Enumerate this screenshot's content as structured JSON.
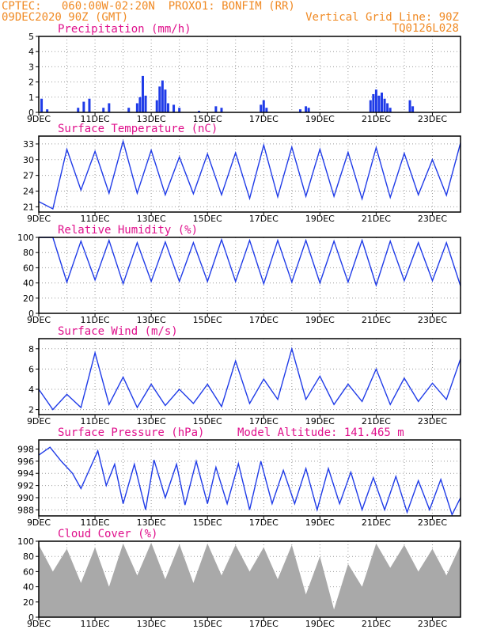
{
  "header": {
    "line1_left": "CPTEC:   060:00W-02:20N  PROXO1: BONFIM (RR)",
    "line2_left": "09DEC2020 90Z (GMT)",
    "line2_right": "Vertical Grid Line: 90Z",
    "line3_right": "TQ0126L028"
  },
  "colors": {
    "header": "#f08a24",
    "panel_title": "#e0108c",
    "series": "#1f3be8",
    "cloud": "#a9a9a9",
    "grid": "#9a9a9a"
  },
  "chart_data": [
    {
      "type": "bar",
      "title": "Precipitation (mm/h)",
      "x_ticks": [
        "9DEC",
        "11DEC",
        "13DEC",
        "15DEC",
        "17DEC",
        "19DEC",
        "21DEC",
        "23DEC"
      ],
      "x_range_days": [
        9,
        24
      ],
      "ylim": [
        0,
        5
      ],
      "y_ticks": [
        0,
        1,
        2,
        3,
        4,
        5
      ],
      "grid": true,
      "x": [
        9.1,
        9.3,
        10.4,
        10.6,
        10.8,
        11.3,
        11.5,
        12.2,
        12.5,
        12.6,
        12.7,
        12.8,
        13.2,
        13.3,
        13.4,
        13.5,
        13.6,
        13.8,
        14.0,
        14.7,
        15.3,
        15.5,
        16.9,
        17.0,
        17.1,
        18.3,
        18.5,
        18.6,
        20.8,
        20.9,
        21.0,
        21.1,
        21.2,
        21.3,
        21.4,
        21.5,
        22.2,
        22.3
      ],
      "values": [
        0.9,
        0.2,
        0.3,
        0.7,
        0.9,
        0.3,
        0.6,
        0.3,
        0.6,
        1.0,
        2.4,
        1.1,
        0.8,
        1.7,
        2.1,
        1.5,
        0.6,
        0.5,
        0.3,
        0.1,
        0.4,
        0.3,
        0.5,
        0.8,
        0.3,
        0.2,
        0.4,
        0.3,
        0.8,
        1.2,
        1.5,
        1.1,
        1.3,
        0.9,
        0.6,
        0.3,
        0.8,
        0.4
      ]
    },
    {
      "type": "line",
      "title": "Surface Temperature (nC)",
      "x_ticks": [
        "9DEC",
        "11DEC",
        "13DEC",
        "15DEC",
        "17DEC",
        "19DEC",
        "21DEC",
        "23DEC"
      ],
      "x_range_days": [
        9,
        24
      ],
      "ylim": [
        20,
        34.5
      ],
      "y_ticks": [
        21,
        24,
        27,
        30,
        33
      ],
      "grid": true,
      "x": [
        9.0,
        9.5,
        10.0,
        10.5,
        11.0,
        11.5,
        12.0,
        12.5,
        13.0,
        13.5,
        14.0,
        14.5,
        15.0,
        15.5,
        16.0,
        16.5,
        17.0,
        17.5,
        18.0,
        18.5,
        19.0,
        19.5,
        20.0,
        20.5,
        21.0,
        21.5,
        22.0,
        22.5,
        23.0,
        23.5,
        24.0
      ],
      "values": [
        22.0,
        20.6,
        32.0,
        24.2,
        31.6,
        23.6,
        33.5,
        23.6,
        31.8,
        23.3,
        30.5,
        23.5,
        31.1,
        23.3,
        31.3,
        22.6,
        32.8,
        22.9,
        32.4,
        23.0,
        32.0,
        23.0,
        31.4,
        22.5,
        32.3,
        22.8,
        31.2,
        23.3,
        30.0,
        23.2,
        33.2
      ]
    },
    {
      "type": "line",
      "title": "Relative Humidity (%)",
      "x_ticks": [
        "9DEC",
        "11DEC",
        "13DEC",
        "15DEC",
        "17DEC",
        "19DEC",
        "21DEC",
        "23DEC"
      ],
      "x_range_days": [
        9,
        24
      ],
      "ylim": [
        0,
        100
      ],
      "y_ticks": [
        0,
        20,
        40,
        60,
        80,
        100
      ],
      "grid": true,
      "x": [
        9.0,
        9.5,
        10.0,
        10.5,
        11.0,
        11.5,
        12.0,
        12.5,
        13.0,
        13.5,
        14.0,
        14.5,
        15.0,
        15.5,
        16.0,
        16.5,
        17.0,
        17.5,
        18.0,
        18.5,
        19.0,
        19.5,
        20.0,
        20.5,
        21.0,
        21.5,
        22.0,
        22.5,
        23.0,
        23.5,
        24.0
      ],
      "values": [
        100,
        100,
        41,
        95,
        44,
        96,
        39,
        93,
        42,
        94,
        42,
        93,
        42,
        97,
        42,
        96,
        39,
        96,
        41,
        96,
        40,
        95,
        41,
        96,
        37,
        95,
        43,
        93,
        43,
        93,
        36
      ]
    },
    {
      "type": "line",
      "title": "Surface Wind (m/s)",
      "x_ticks": [
        "9DEC",
        "11DEC",
        "13DEC",
        "15DEC",
        "17DEC",
        "19DEC",
        "21DEC",
        "23DEC"
      ],
      "x_range_days": [
        9,
        24
      ],
      "ylim": [
        1.5,
        9
      ],
      "y_ticks": [
        2,
        4,
        6,
        8
      ],
      "grid": true,
      "x": [
        9.0,
        9.5,
        10.0,
        10.5,
        11.0,
        11.5,
        12.0,
        12.5,
        13.0,
        13.5,
        14.0,
        14.5,
        15.0,
        15.5,
        16.0,
        16.5,
        17.0,
        17.5,
        18.0,
        18.5,
        19.0,
        19.5,
        20.0,
        20.5,
        21.0,
        21.5,
        22.0,
        22.5,
        23.0,
        23.5,
        24.0
      ],
      "values": [
        4.0,
        2.0,
        3.5,
        2.2,
        7.6,
        2.5,
        5.2,
        2.2,
        4.5,
        2.4,
        4.0,
        2.6,
        4.5,
        2.3,
        6.8,
        2.6,
        5.0,
        3.0,
        8.0,
        3.0,
        5.3,
        2.5,
        4.5,
        2.8,
        6.0,
        2.5,
        5.1,
        2.8,
        4.6,
        3.0,
        7.0
      ]
    },
    {
      "type": "line",
      "title": "Surface Pressure (hPa)",
      "annotation": "Model Altitude: 141.465  m",
      "x_ticks": [
        "9DEC",
        "11DEC",
        "13DEC",
        "15DEC",
        "17DEC",
        "19DEC",
        "21DEC",
        "23DEC"
      ],
      "x_range_days": [
        9,
        24
      ],
      "ylim": [
        987,
        999.5
      ],
      "y_ticks": [
        988,
        990,
        992,
        994,
        996,
        998
      ],
      "grid": true,
      "x": [
        9.0,
        9.4,
        9.8,
        10.2,
        10.5,
        10.8,
        11.1,
        11.4,
        11.7,
        12.0,
        12.4,
        12.8,
        13.1,
        13.5,
        13.9,
        14.2,
        14.6,
        15.0,
        15.3,
        15.7,
        16.1,
        16.5,
        16.9,
        17.3,
        17.7,
        18.1,
        18.5,
        18.9,
        19.3,
        19.7,
        20.1,
        20.5,
        20.9,
        21.3,
        21.7,
        22.1,
        22.5,
        22.9,
        23.3,
        23.7,
        24.0
      ],
      "values": [
        997.0,
        998.3,
        996.0,
        994.0,
        991.5,
        994.6,
        997.7,
        992.0,
        995.5,
        989.0,
        995.5,
        988.0,
        996.2,
        990.0,
        995.5,
        988.8,
        996.0,
        989.0,
        995.0,
        989.0,
        995.6,
        988.0,
        996.0,
        989.0,
        994.5,
        989.0,
        994.8,
        988.0,
        994.8,
        989.0,
        994.2,
        988.0,
        993.3,
        988.0,
        993.5,
        987.6,
        992.8,
        988.0,
        993.0,
        987.2,
        990.0
      ]
    },
    {
      "type": "area",
      "title": "Cloud Cover (%)",
      "x_ticks": [
        "9DEC",
        "11DEC",
        "13DEC",
        "15DEC",
        "17DEC",
        "19DEC",
        "21DEC",
        "23DEC"
      ],
      "x_range_days": [
        9,
        24
      ],
      "ylim": [
        0,
        100
      ],
      "y_ticks": [
        0,
        20,
        40,
        60,
        80,
        100
      ],
      "grid": true,
      "x": [
        9.0,
        9.5,
        10.0,
        10.5,
        11.0,
        11.5,
        12.0,
        12.5,
        13.0,
        13.5,
        14.0,
        14.5,
        15.0,
        15.5,
        16.0,
        16.5,
        17.0,
        17.5,
        18.0,
        18.5,
        19.0,
        19.5,
        20.0,
        20.5,
        21.0,
        21.5,
        22.0,
        22.5,
        23.0,
        23.5,
        24.0
      ],
      "values": [
        95,
        60,
        90,
        45,
        92,
        40,
        97,
        55,
        98,
        50,
        96,
        45,
        97,
        55,
        95,
        60,
        92,
        50,
        95,
        30,
        80,
        10,
        70,
        40,
        97,
        65,
        95,
        60,
        90,
        55,
        95
      ]
    }
  ]
}
